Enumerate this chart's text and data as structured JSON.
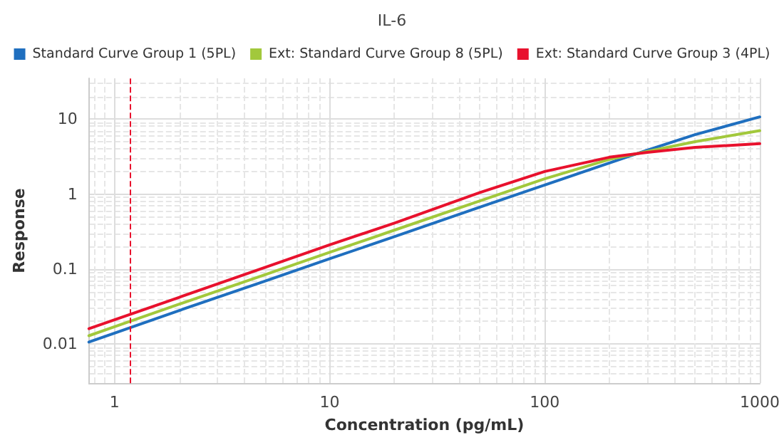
{
  "chart_data": {
    "type": "line",
    "title": "IL-6",
    "xlabel": "Concentration (pg/mL)",
    "ylabel": "Response",
    "log": "xy",
    "grid": true,
    "legend": "top",
    "marker": "none",
    "line_style": "solid",
    "xlim": [
      0.76,
      1000
    ],
    "xticks": [
      1,
      10,
      100,
      1000
    ],
    "ylim": [
      0.003,
      35
    ],
    "yticks": [
      0.01,
      0.1,
      1,
      10
    ],
    "x": [
      0.76,
      1,
      2,
      5,
      10,
      20,
      50,
      100,
      200,
      300,
      500,
      1000
    ],
    "series": [
      {
        "name": "Standard Curve Group 1 (5PL)",
        "color": "#1f6fbf",
        "values": [
          0.0106,
          0.014,
          0.028,
          0.069,
          0.137,
          0.27,
          0.67,
          1.32,
          2.6,
          3.85,
          6.2,
          10.7
        ]
      },
      {
        "name": "Ext: Standard Curve Group 8 (5PL)",
        "color": "#a2c83c",
        "values": [
          0.0129,
          0.017,
          0.034,
          0.084,
          0.167,
          0.33,
          0.81,
          1.6,
          2.9,
          3.7,
          5.0,
          7.0
        ]
      },
      {
        "name": "Ext: Standard Curve Group 3 (4PL)",
        "color": "#e8112d",
        "values": [
          0.016,
          0.021,
          0.042,
          0.105,
          0.21,
          0.41,
          1.05,
          2.0,
          3.1,
          3.6,
          4.2,
          4.7
        ]
      }
    ],
    "ref_lines": [
      {
        "axis": "x",
        "value": 1.18,
        "color": "#e8112d",
        "line_style": "dashed"
      }
    ]
  }
}
